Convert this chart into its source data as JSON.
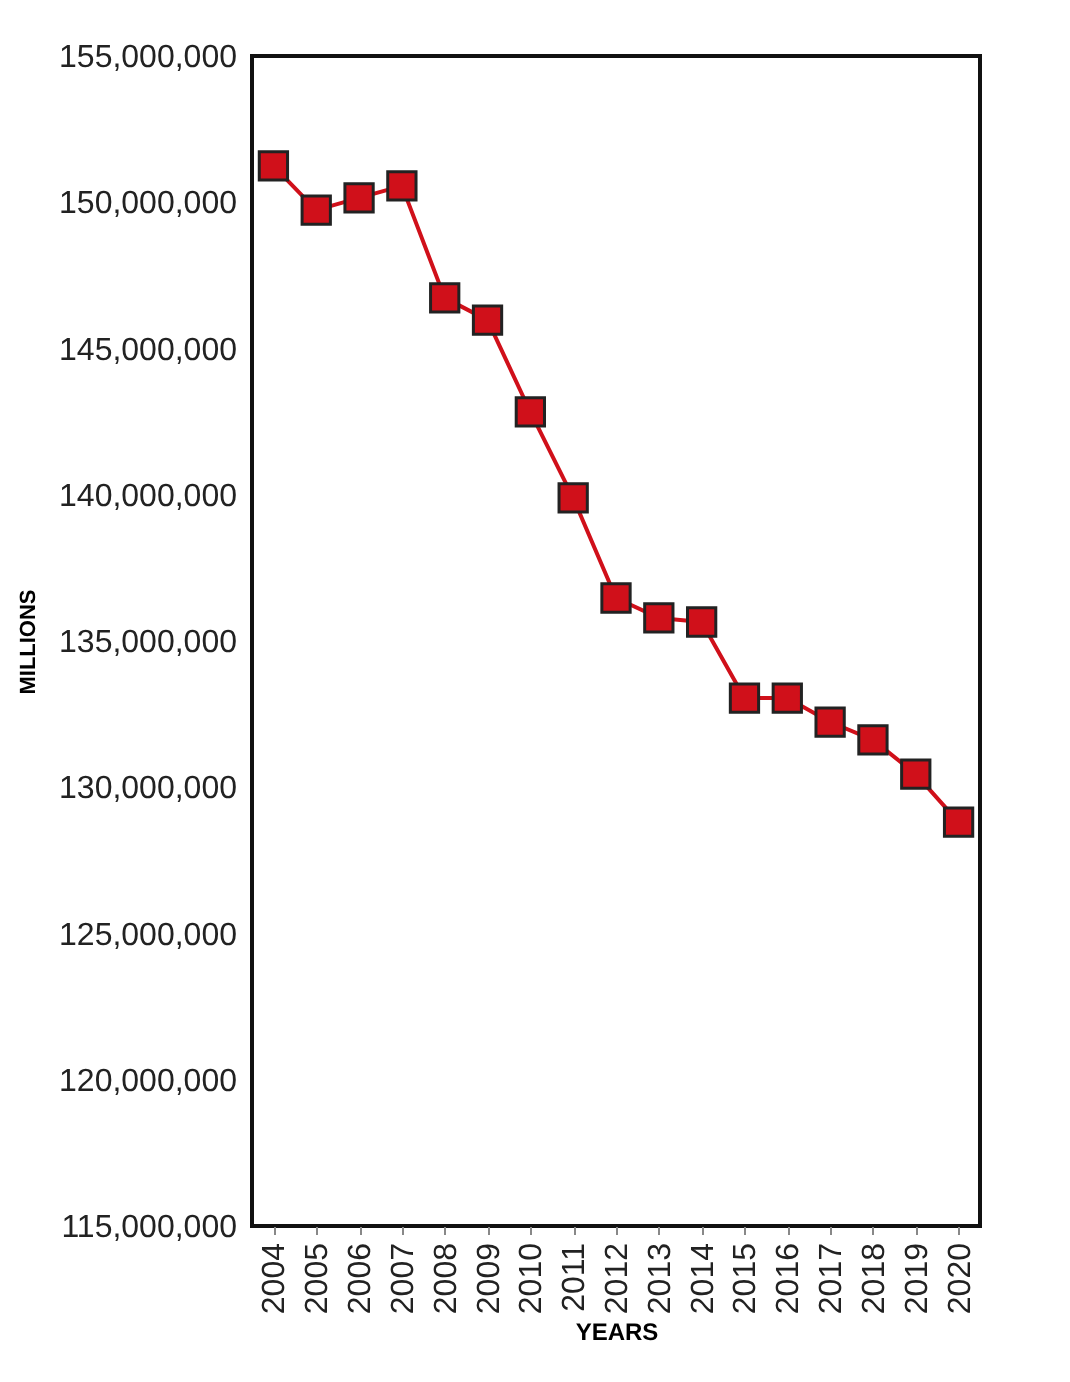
{
  "chart_data": {
    "type": "line",
    "xlabel": "YEARS",
    "ylabel": "MILLIONS",
    "categories": [
      "2004",
      "2005",
      "2006",
      "2007",
      "2008",
      "2009",
      "2010",
      "2011",
      "2012",
      "2013",
      "2014",
      "2015",
      "2016",
      "2017",
      "2018",
      "2019",
      "2020"
    ],
    "series": [
      {
        "color": "#d0101a",
        "values": [
          151240000,
          149730000,
          150150000,
          150560000,
          146730000,
          145970000,
          142830000,
          139890000,
          136470000,
          135790000,
          135650000,
          133050000,
          133050000,
          132230000,
          131620000,
          130450000,
          128810000
        ]
      }
    ],
    "ylim": [
      115000000,
      155000000
    ],
    "yticks": [
      {
        "value": 115000000,
        "label": "115,000,000"
      },
      {
        "value": 120000000,
        "label": "120,000,000"
      },
      {
        "value": 125000000,
        "label": "125,000,000"
      },
      {
        "value": 130000000,
        "label": "130,000,000"
      },
      {
        "value": 135000000,
        "label": "135,000,000"
      },
      {
        "value": 140000000,
        "label": "140,000,000"
      },
      {
        "value": 145000000,
        "label": "145,000,000"
      },
      {
        "value": 150000000,
        "label": "150,000,000"
      },
      {
        "value": 155000000,
        "label": "155,000,000"
      }
    ],
    "grid": false,
    "marker": "square",
    "line_style": "solid"
  }
}
